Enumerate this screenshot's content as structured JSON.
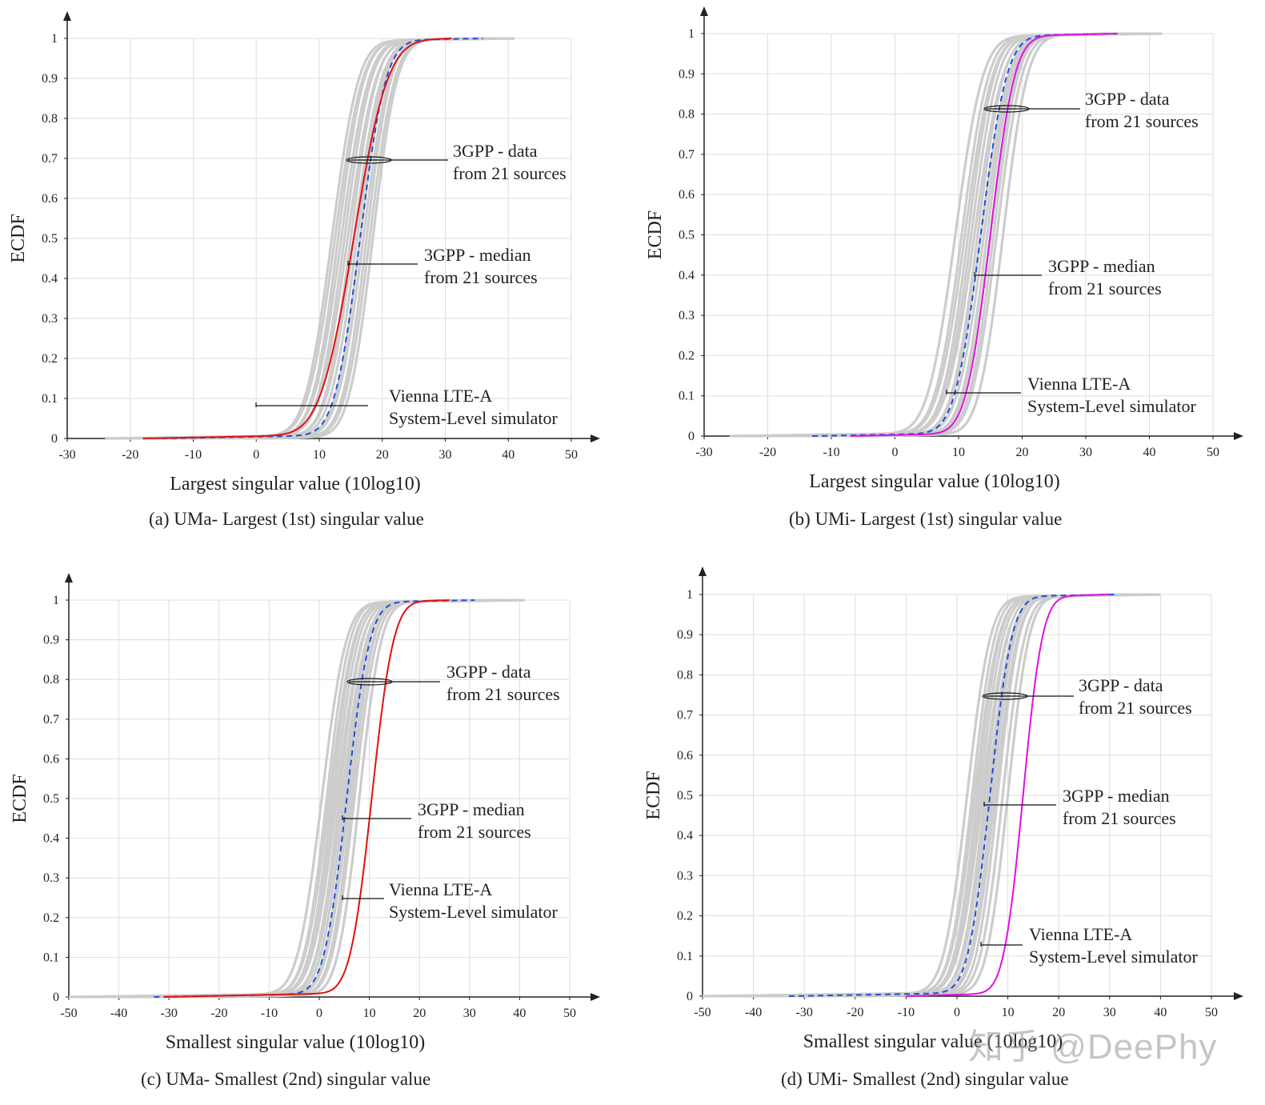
{
  "colors": {
    "grid": "#dddddd",
    "axis": "#222222",
    "sources": "#cccccc",
    "median": "#1f4fd8",
    "vienna_uma": "#e01010",
    "vienna_umi": "#e010e0"
  },
  "watermark": "知乎 @DeePhy",
  "panels": [
    {
      "caption": "(a) UMa- Largest (1st) singular value",
      "xlabel": "Largest singular value (10log10)",
      "ylabel": "ECDF",
      "xticks": [
        "-30",
        "-20",
        "-10",
        "0",
        "10",
        "20",
        "30",
        "40",
        "50"
      ],
      "yticks": [
        "0",
        "0.1",
        "0.2",
        "0.3",
        "0.4",
        "0.5",
        "0.6",
        "0.7",
        "0.8",
        "0.9",
        "1"
      ],
      "annotations": [
        {
          "lines": [
            "3GPP - data",
            "from 21 sources"
          ]
        },
        {
          "lines": [
            "3GPP - median",
            "from 21 sources"
          ]
        },
        {
          "lines": [
            "Vienna LTE-A",
            "System-Level simulator"
          ]
        }
      ]
    },
    {
      "caption": "(b) UMi- Largest (1st) singular value",
      "xlabel": "Largest singular value (10log10)",
      "ylabel": "ECDF",
      "xticks": [
        "-30",
        "-20",
        "-10",
        "0",
        "10",
        "20",
        "30",
        "40",
        "50"
      ],
      "yticks": [
        "0",
        "0.1",
        "0.2",
        "0.3",
        "0.4",
        "0.5",
        "0.6",
        "0.7",
        "0.8",
        "0.9",
        "1"
      ],
      "annotations": [
        {
          "lines": [
            "3GPP - data",
            "from 21 sources"
          ]
        },
        {
          "lines": [
            "3GPP - median",
            "from 21 sources"
          ]
        },
        {
          "lines": [
            "Vienna LTE-A",
            "System-Level simulator"
          ]
        }
      ]
    },
    {
      "caption": "(c) UMa- Smallest (2nd) singular value",
      "xlabel": "Smallest singular value (10log10)",
      "ylabel": "ECDF",
      "xticks": [
        "-50",
        "-40",
        "-30",
        "-20",
        "-10",
        "0",
        "10",
        "20",
        "30",
        "40",
        "50"
      ],
      "yticks": [
        "0",
        "0.1",
        "0.2",
        "0.3",
        "0.4",
        "0.5",
        "0.6",
        "0.7",
        "0.8",
        "0.9",
        "1"
      ],
      "annotations": [
        {
          "lines": [
            "3GPP - data",
            "from 21 sources"
          ]
        },
        {
          "lines": [
            "3GPP - median",
            "from 21 sources"
          ]
        },
        {
          "lines": [
            "Vienna LTE-A",
            "System-Level simulator"
          ]
        }
      ]
    },
    {
      "caption": "(d) UMi- Smallest (2nd) singular value",
      "xlabel": "Smallest singular value (10log10)",
      "ylabel": "ECDF",
      "xticks": [
        "-50",
        "-40",
        "-30",
        "-20",
        "-10",
        "0",
        "10",
        "20",
        "30",
        "40",
        "50"
      ],
      "yticks": [
        "0",
        "0.1",
        "0.2",
        "0.3",
        "0.4",
        "0.5",
        "0.6",
        "0.7",
        "0.8",
        "0.9",
        "1"
      ],
      "annotations": [
        {
          "lines": [
            "3GPP - data",
            "from 21 sources"
          ]
        },
        {
          "lines": [
            "3GPP - median",
            "from 21 sources"
          ]
        },
        {
          "lines": [
            "Vienna LTE-A",
            "System-Level simulator"
          ]
        }
      ]
    }
  ],
  "chart_data": [
    {
      "type": "line",
      "title": "",
      "xlabel": "Largest singular value (10log10)",
      "ylabel": "ECDF",
      "xlim": [
        -30,
        50
      ],
      "ylim": [
        0,
        1
      ],
      "grid": true,
      "series": [
        {
          "name": "3GPP - data from 21 sources",
          "style": "solid gray",
          "curves": [
            {
              "median": 12.0,
              "scale": 3.3,
              "x_min": -24,
              "x_max": 41
            },
            {
              "median": 12.5,
              "scale": 3.4,
              "x_min": -23,
              "x_max": 40
            },
            {
              "median": 13.0,
              "scale": 3.2,
              "x_min": -22,
              "x_max": 39
            },
            {
              "median": 13.5,
              "scale": 3.4,
              "x_min": -20,
              "x_max": 38
            },
            {
              "median": 14.0,
              "scale": 3.3,
              "x_min": -18,
              "x_max": 38
            },
            {
              "median": 14.5,
              "scale": 3.5,
              "x_min": -16,
              "x_max": 37
            },
            {
              "median": 15.0,
              "scale": 3.2,
              "x_min": -14,
              "x_max": 37
            },
            {
              "median": 15.5,
              "scale": 3.4,
              "x_min": -12,
              "x_max": 36
            },
            {
              "median": 16.0,
              "scale": 3.3,
              "x_min": -10,
              "x_max": 36
            },
            {
              "median": 16.5,
              "scale": 3.1,
              "x_min": -8,
              "x_max": 35
            },
            {
              "median": 17.0,
              "scale": 3.2,
              "x_min": -5,
              "x_max": 35
            },
            {
              "median": 17.5,
              "scale": 3.0,
              "x_min": -2,
              "x_max": 34
            },
            {
              "median": 18.0,
              "scale": 3.1,
              "x_min": 0,
              "x_max": 34
            },
            {
              "median": 18.5,
              "scale": 3.0,
              "x_min": 2,
              "x_max": 33
            }
          ]
        },
        {
          "name": "3GPP - median from 21 sources",
          "style": "dashed blue",
          "curves": [
            {
              "median": 16.5,
              "scale": 3.2,
              "x_min": -15,
              "x_max": 36
            }
          ]
        },
        {
          "name": "Vienna LTE-A System-Level simulator",
          "style": "solid red",
          "curves": [
            {
              "median": 15.5,
              "scale": 4.2,
              "x_min": -18,
              "x_max": 31
            }
          ]
        }
      ]
    },
    {
      "type": "line",
      "title": "",
      "xlabel": "Largest singular value (10log10)",
      "ylabel": "ECDF",
      "xlim": [
        -30,
        50
      ],
      "ylim": [
        0,
        1
      ],
      "grid": true,
      "series": [
        {
          "name": "3GPP - data from 21 sources",
          "style": "solid gray",
          "curves": [
            {
              "median": 9.5,
              "scale": 3.4,
              "x_min": -26,
              "x_max": 42
            },
            {
              "median": 10.5,
              "scale": 3.3,
              "x_min": -25,
              "x_max": 41
            },
            {
              "median": 11.0,
              "scale": 3.4,
              "x_min": -24,
              "x_max": 40
            },
            {
              "median": 11.5,
              "scale": 3.2,
              "x_min": -22,
              "x_max": 40
            },
            {
              "median": 12.0,
              "scale": 3.3,
              "x_min": -20,
              "x_max": 39
            },
            {
              "median": 12.5,
              "scale": 3.5,
              "x_min": -18,
              "x_max": 38
            },
            {
              "median": 13.0,
              "scale": 3.2,
              "x_min": -16,
              "x_max": 38
            },
            {
              "median": 13.5,
              "scale": 3.4,
              "x_min": -14,
              "x_max": 37
            },
            {
              "median": 14.0,
              "scale": 3.3,
              "x_min": -12,
              "x_max": 37
            },
            {
              "median": 14.5,
              "scale": 3.1,
              "x_min": -10,
              "x_max": 36
            },
            {
              "median": 15.0,
              "scale": 3.2,
              "x_min": -8,
              "x_max": 36
            },
            {
              "median": 15.5,
              "scale": 3.0,
              "x_min": -6,
              "x_max": 35
            },
            {
              "median": 16.0,
              "scale": 3.1,
              "x_min": -4,
              "x_max": 35
            },
            {
              "median": 17.0,
              "scale": 3.0,
              "x_min": -2,
              "x_max": 34
            }
          ]
        },
        {
          "name": "3GPP - median from 21 sources",
          "style": "dashed blue",
          "curves": [
            {
              "median": 13.5,
              "scale": 3.2,
              "x_min": -13,
              "x_max": 35
            }
          ]
        },
        {
          "name": "Vienna LTE-A System-Level simulator",
          "style": "solid magenta",
          "curves": [
            {
              "median": 15.0,
              "scale": 3.0,
              "x_min": -7,
              "x_max": 35
            }
          ]
        }
      ]
    },
    {
      "type": "line",
      "title": "",
      "xlabel": "Smallest singular value (10log10)",
      "ylabel": "ECDF",
      "xlim": [
        -50,
        50
      ],
      "ylim": [
        0,
        1
      ],
      "grid": true,
      "series": [
        {
          "name": "3GPP - data from 21 sources",
          "style": "solid gray",
          "curves": [
            {
              "median": 0.5,
              "scale": 3.8,
              "x_min": -50,
              "x_max": 41
            },
            {
              "median": 1.5,
              "scale": 3.6,
              "x_min": -48,
              "x_max": 40
            },
            {
              "median": 2.0,
              "scale": 3.8,
              "x_min": -45,
              "x_max": 39
            },
            {
              "median": 2.5,
              "scale": 3.6,
              "x_min": -42,
              "x_max": 38
            },
            {
              "median": 3.0,
              "scale": 3.7,
              "x_min": -40,
              "x_max": 37
            },
            {
              "median": 3.5,
              "scale": 3.9,
              "x_min": -38,
              "x_max": 36
            },
            {
              "median": 4.0,
              "scale": 3.6,
              "x_min": -35,
              "x_max": 36
            },
            {
              "median": 4.5,
              "scale": 3.8,
              "x_min": -32,
              "x_max": 35
            },
            {
              "median": 5.0,
              "scale": 3.7,
              "x_min": -30,
              "x_max": 34
            },
            {
              "median": 5.5,
              "scale": 3.5,
              "x_min": -28,
              "x_max": 34
            },
            {
              "median": 6.0,
              "scale": 3.6,
              "x_min": -25,
              "x_max": 33
            },
            {
              "median": 6.5,
              "scale": 3.4,
              "x_min": -22,
              "x_max": 32
            },
            {
              "median": 7.0,
              "scale": 3.5,
              "x_min": -20,
              "x_max": 31
            },
            {
              "median": 8.0,
              "scale": 3.4,
              "x_min": -18,
              "x_max": 30
            }
          ]
        },
        {
          "name": "3GPP - median from 21 sources",
          "style": "dashed blue",
          "curves": [
            {
              "median": 5.5,
              "scale": 3.6,
              "x_min": -33,
              "x_max": 31
            }
          ]
        },
        {
          "name": "Vienna LTE-A System-Level simulator",
          "style": "solid red",
          "curves": [
            {
              "median": 10.5,
              "scale": 3.4,
              "x_min": -31,
              "x_max": 26
            }
          ]
        }
      ]
    },
    {
      "type": "line",
      "title": "",
      "xlabel": "Smallest singular value (10log10)",
      "ylabel": "ECDF",
      "xlim": [
        -50,
        50
      ],
      "ylim": [
        0,
        1
      ],
      "grid": true,
      "series": [
        {
          "name": "3GPP - data from 21 sources",
          "style": "solid gray",
          "curves": [
            {
              "median": 2.0,
              "scale": 3.6,
              "x_min": -50,
              "x_max": 40
            },
            {
              "median": 3.0,
              "scale": 3.5,
              "x_min": -48,
              "x_max": 39
            },
            {
              "median": 3.5,
              "scale": 3.7,
              "x_min": -46,
              "x_max": 38
            },
            {
              "median": 4.0,
              "scale": 3.5,
              "x_min": -42,
              "x_max": 37
            },
            {
              "median": 4.5,
              "scale": 3.6,
              "x_min": -40,
              "x_max": 37
            },
            {
              "median": 5.0,
              "scale": 3.8,
              "x_min": -38,
              "x_max": 36
            },
            {
              "median": 5.5,
              "scale": 3.5,
              "x_min": -35,
              "x_max": 36
            },
            {
              "median": 6.0,
              "scale": 3.7,
              "x_min": -32,
              "x_max": 35
            },
            {
              "median": 6.5,
              "scale": 3.6,
              "x_min": -30,
              "x_max": 35
            },
            {
              "median": 7.0,
              "scale": 3.4,
              "x_min": -28,
              "x_max": 34
            },
            {
              "median": 7.5,
              "scale": 3.5,
              "x_min": -25,
              "x_max": 34
            },
            {
              "median": 8.0,
              "scale": 3.3,
              "x_min": -22,
              "x_max": 33
            },
            {
              "median": 9.0,
              "scale": 3.4,
              "x_min": -20,
              "x_max": 33
            },
            {
              "median": 10.0,
              "scale": 3.3,
              "x_min": -18,
              "x_max": 32
            }
          ]
        },
        {
          "name": "3GPP - median from 21 sources",
          "style": "dashed blue",
          "curves": [
            {
              "median": 6.5,
              "scale": 3.4,
              "x_min": -33,
              "x_max": 31
            }
          ]
        },
        {
          "name": "Vienna LTE-A System-Level simulator",
          "style": "solid magenta",
          "curves": [
            {
              "median": 13.0,
              "scale": 3.0,
              "x_min": -10,
              "x_max": 30
            }
          ]
        }
      ]
    }
  ]
}
